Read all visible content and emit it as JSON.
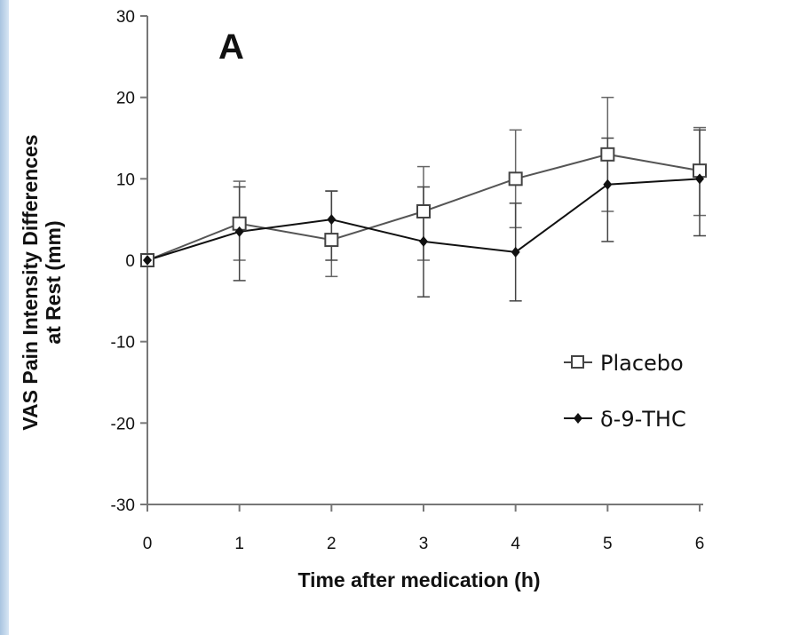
{
  "panel_label": "A",
  "legend": [
    {
      "label": "Placebo",
      "marker": "open-square"
    },
    {
      "label": "δ-9-THC",
      "marker": "filled-diamond"
    }
  ],
  "chart_data": {
    "type": "line",
    "title": "",
    "xlabel": "Time after medication (h)",
    "ylabel_lines": [
      "VAS Pain Intensity Differences",
      "at Rest (mm)"
    ],
    "xlim": [
      0,
      6
    ],
    "ylim": [
      -30,
      30
    ],
    "xticks": [
      0,
      1,
      2,
      3,
      4,
      5,
      6
    ],
    "yticks": [
      30,
      20,
      10,
      0,
      -10,
      -20,
      -30
    ],
    "grid": false,
    "legend_position": "right",
    "x": [
      0,
      1,
      2,
      3,
      4,
      5,
      6
    ],
    "series": [
      {
        "name": "Placebo",
        "marker": "open-square",
        "values": [
          0,
          4.5,
          2.5,
          6,
          10,
          13,
          11
        ],
        "error_upper": [
          0,
          9.7,
          8.5,
          11.5,
          16,
          20,
          16.3
        ],
        "error_lower": [
          0,
          0,
          -2,
          0,
          4,
          6,
          5.5
        ]
      },
      {
        "name": "δ-9-THC",
        "marker": "filled-diamond",
        "values": [
          0,
          3.5,
          5,
          2.3,
          1,
          9.3,
          10
        ],
        "error_upper": [
          0,
          9,
          8.5,
          9,
          7,
          15,
          16
        ],
        "error_lower": [
          0,
          -2.5,
          0,
          -4.5,
          -5,
          2.3,
          3
        ]
      }
    ]
  }
}
